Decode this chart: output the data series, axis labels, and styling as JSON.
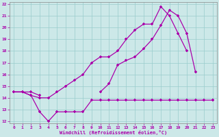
{
  "line1_x": [
    0,
    1,
    2,
    3,
    4,
    5,
    6,
    7,
    8,
    9,
    10,
    11,
    12,
    13,
    14,
    15,
    16,
    17,
    18,
    19,
    20,
    23
  ],
  "line1_y": [
    14.5,
    14.5,
    14.2,
    14.0,
    14.0,
    14.5,
    15.0,
    15.5,
    16.0,
    17.0,
    17.5,
    17.5,
    18.0,
    19.0,
    19.8,
    20.3,
    20.3,
    21.8,
    21.0,
    19.5,
    18.0,
    13.8
  ],
  "line2_x": [
    0,
    1,
    2,
    3,
    10,
    11,
    12,
    13,
    14,
    15,
    16,
    17,
    18,
    19,
    20,
    21,
    23
  ],
  "line2_y": [
    14.5,
    14.5,
    14.5,
    14.2,
    14.5,
    15.2,
    16.8,
    17.2,
    17.5,
    18.2,
    19.0,
    20.2,
    21.5,
    21.0,
    19.5,
    16.2,
    13.8
  ],
  "line3_x": [
    0,
    1,
    2,
    3,
    4,
    5,
    6,
    7,
    8,
    9,
    10,
    11,
    12,
    13,
    14,
    15,
    16,
    17,
    18,
    19,
    20,
    21,
    22,
    23
  ],
  "line3_y": [
    14.5,
    14.5,
    14.2,
    12.8,
    12.0,
    12.8,
    12.8,
    12.8,
    12.8,
    13.8,
    13.8,
    13.8,
    13.8,
    13.8,
    13.8,
    13.8,
    13.8,
    13.8,
    13.8,
    13.8,
    13.8,
    13.8,
    13.8,
    13.8
  ],
  "bg_color": "#cce8e8",
  "line_color": "#aa00aa",
  "grid_color": "#99cccc",
  "xlabel": "Windchill (Refroidissement éolien,°C)",
  "xlim": [
    -0.5,
    23.5
  ],
  "ylim": [
    11.8,
    22.2
  ],
  "yticks": [
    12,
    13,
    14,
    15,
    16,
    17,
    18,
    19,
    20,
    21,
    22
  ],
  "xticks": [
    0,
    1,
    2,
    3,
    4,
    5,
    6,
    7,
    8,
    9,
    10,
    11,
    12,
    13,
    14,
    15,
    16,
    17,
    18,
    19,
    20,
    21,
    22,
    23
  ]
}
